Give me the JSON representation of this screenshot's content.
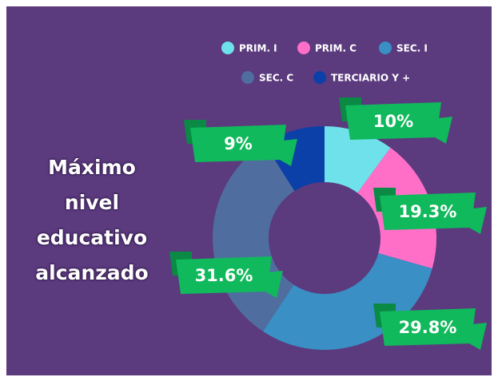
{
  "chart_data": {
    "type": "donut",
    "title": "Máximo nivel educativo alcanzado",
    "categories": [
      "PRIM. I",
      "PRIM. C",
      "SEC. I",
      "SEC. C",
      "TERCIARIO Y +"
    ],
    "values": [
      10,
      19.3,
      29.8,
      31.6,
      9
    ],
    "value_labels": [
      "10%",
      "19.3%",
      "29.8%",
      "31.6%",
      "9%"
    ],
    "colors": [
      "#6fe1ea",
      "#ff6fc8",
      "#3a8fc4",
      "#4f6e9f",
      "#0b40a8"
    ],
    "legend": "top"
  }
}
